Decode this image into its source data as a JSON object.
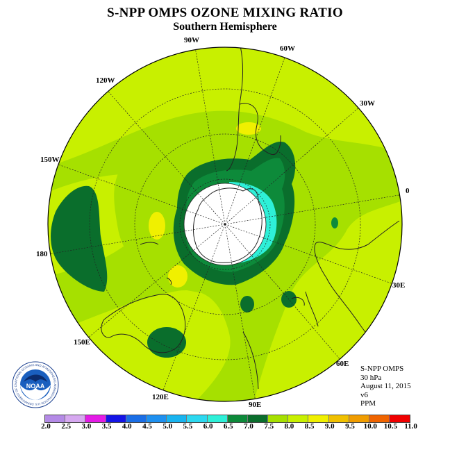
{
  "header": {
    "title": "S-NPP OMPS OZONE MIXING RATIO",
    "subtitle": "Southern Hemisphere"
  },
  "longitude_labels": [
    "90W",
    "60W",
    "120W",
    "30W",
    "150W",
    "0",
    "180",
    "30E",
    "150E",
    "60E",
    "120E",
    "90E"
  ],
  "info": {
    "instrument": "S-NPP OMPS",
    "level": "30 hPa",
    "date": "August 11, 2015",
    "version": "v6",
    "units": "PPM"
  },
  "logo": {
    "name": "NOAA",
    "ring_text": "NATIONAL OCEANIC AND ATMOSPHERIC ADMINISTRATION U.S. DEPARTMENT OF COMMERCE"
  },
  "colorbar": {
    "ticks": [
      "2.0",
      "2.5",
      "3.0",
      "3.5",
      "4.0",
      "4.5",
      "5.0",
      "5.5",
      "6.0",
      "6.5",
      "7.0",
      "7.5",
      "8.0",
      "8.5",
      "9.0",
      "9.5",
      "10.0",
      "10.5",
      "11.0"
    ],
    "colors": [
      "#b48ae6",
      "#d6a8f0",
      "#e41be6",
      "#1414e6",
      "#1a6ee6",
      "#1e90f0",
      "#18b4f0",
      "#2cd8f0",
      "#2ef0d8",
      "#0d8a3a",
      "#0a6e2c",
      "#a6e000",
      "#c8f000",
      "#f0f000",
      "#f0c000",
      "#f09c00",
      "#f06400",
      "#f00000",
      "#8a5c3c"
    ]
  },
  "colors": {
    "background_field": "#a6e000",
    "high_field": "#c8f000",
    "mid_green": "#0d8a3a",
    "dark_green": "#0a6e2c",
    "cyan": "#2ef0d8",
    "yellow": "#f0f000"
  }
}
